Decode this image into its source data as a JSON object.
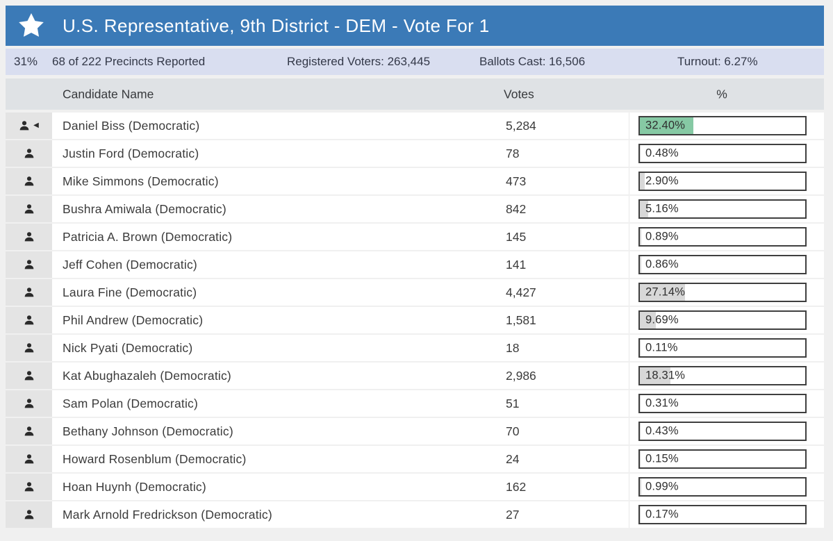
{
  "contest": {
    "title": "U.S. Representative, 9th District - DEM - Vote For 1"
  },
  "stats": {
    "reported_pct": "31%",
    "precincts": "68 of 222 Precincts Reported",
    "registered_voters": "Registered Voters: 263,445",
    "ballots_cast": "Ballots Cast: 16,506",
    "turnout": "Turnout: 6.27%"
  },
  "table": {
    "columns": {
      "candidate": "Candidate Name",
      "votes": "Votes",
      "percent": "%"
    },
    "rows": [
      {
        "name": "Daniel Biss (Democratic)",
        "votes": "5,284",
        "percent_label": "32.40%",
        "percent_value": 32.4,
        "leader": true
      },
      {
        "name": "Justin Ford (Democratic)",
        "votes": "78",
        "percent_label": "0.48%",
        "percent_value": 0.48,
        "leader": false
      },
      {
        "name": "Mike Simmons (Democratic)",
        "votes": "473",
        "percent_label": "2.90%",
        "percent_value": 2.9,
        "leader": false
      },
      {
        "name": "Bushra Amiwala (Democratic)",
        "votes": "842",
        "percent_label": "5.16%",
        "percent_value": 5.16,
        "leader": false
      },
      {
        "name": "Patricia A. Brown (Democratic)",
        "votes": "145",
        "percent_label": "0.89%",
        "percent_value": 0.89,
        "leader": false
      },
      {
        "name": "Jeff Cohen (Democratic)",
        "votes": "141",
        "percent_label": "0.86%",
        "percent_value": 0.86,
        "leader": false
      },
      {
        "name": "Laura Fine (Democratic)",
        "votes": "4,427",
        "percent_label": "27.14%",
        "percent_value": 27.14,
        "leader": false
      },
      {
        "name": "Phil Andrew (Democratic)",
        "votes": "1,581",
        "percent_label": "9.69%",
        "percent_value": 9.69,
        "leader": false
      },
      {
        "name": "Nick Pyati (Democratic)",
        "votes": "18",
        "percent_label": "0.11%",
        "percent_value": 0.11,
        "leader": false
      },
      {
        "name": "Kat Abughazaleh (Democratic)",
        "votes": "2,986",
        "percent_label": "18.31%",
        "percent_value": 18.31,
        "leader": false
      },
      {
        "name": "Sam Polan (Democratic)",
        "votes": "51",
        "percent_label": "0.31%",
        "percent_value": 0.31,
        "leader": false
      },
      {
        "name": "Bethany Johnson (Democratic)",
        "votes": "70",
        "percent_label": "0.43%",
        "percent_value": 0.43,
        "leader": false
      },
      {
        "name": "Howard Rosenblum (Democratic)",
        "votes": "24",
        "percent_label": "0.15%",
        "percent_value": 0.15,
        "leader": false
      },
      {
        "name": "Hoan Huynh (Democratic)",
        "votes": "162",
        "percent_label": "0.99%",
        "percent_value": 0.99,
        "leader": false
      },
      {
        "name": "Mark Arnold Fredrickson (Democratic)",
        "votes": "27",
        "percent_label": "0.17%",
        "percent_value": 0.17,
        "leader": false
      }
    ]
  },
  "icons": {
    "star": "star-icon",
    "person": "person-icon",
    "leader_marker_glyph": "◀"
  },
  "colors": {
    "header_bg": "#3b7ab7",
    "stats_bg": "#d9def0",
    "thead_bg": "#dfe2e5",
    "icon_cell_bg": "#e4e4e4",
    "bar_border": "#3f3f3f",
    "bar_fill": "#d8d8d8",
    "leader_fill": "#86c9a4",
    "icon_color": "#2b2b2b"
  }
}
